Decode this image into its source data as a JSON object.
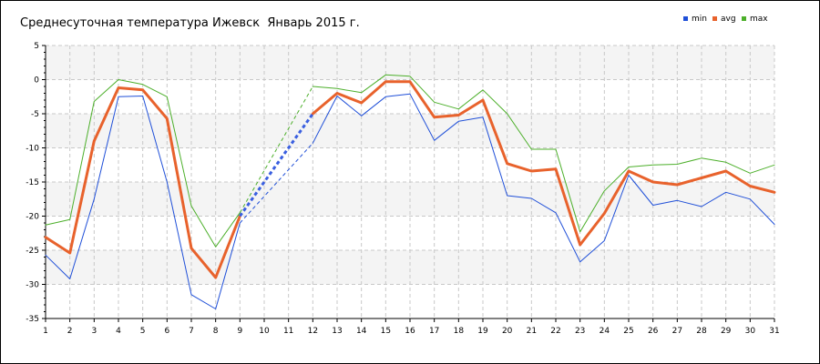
{
  "chart_data": {
    "type": "line",
    "title": "Среднесуточная температура Ижевск  Январь 2015 г.",
    "xlabel": "",
    "ylabel": "",
    "x": [
      1,
      2,
      3,
      4,
      5,
      6,
      7,
      8,
      9,
      10,
      11,
      12,
      13,
      14,
      15,
      16,
      17,
      18,
      19,
      20,
      21,
      22,
      23,
      24,
      25,
      26,
      27,
      28,
      29,
      30,
      31
    ],
    "xlim": [
      1,
      31
    ],
    "ylim": [
      -35,
      5
    ],
    "y_ticks": [
      5,
      0,
      -5,
      -10,
      -15,
      -20,
      -25,
      -30,
      -35
    ],
    "grid": true,
    "legend_position": "top-right",
    "gap_days": [
      10,
      11
    ],
    "series": [
      {
        "name": "min",
        "color": "#1f4fd8",
        "values": [
          -25.7,
          -29.2,
          -17.5,
          -2.5,
          -2.4,
          -15.0,
          -31.5,
          -33.6,
          -21.0,
          null,
          null,
          -9.3,
          -2.4,
          -5.3,
          -2.5,
          -2.1,
          -8.9,
          -6.1,
          -5.5,
          -17.0,
          -17.4,
          -19.5,
          -26.7,
          -23.6,
          -14.0,
          -18.4,
          -17.7,
          -18.6,
          -16.5,
          -17.5,
          -21.2
        ]
      },
      {
        "name": "avg",
        "color": "#e8622c",
        "values": [
          -23.1,
          -25.4,
          -9.0,
          -1.2,
          -1.5,
          -5.7,
          -24.7,
          -29.0,
          -20.0,
          null,
          null,
          -5.0,
          -2.0,
          -3.4,
          -0.3,
          -0.3,
          -5.5,
          -5.2,
          -3.0,
          -12.3,
          -13.4,
          -13.1,
          -24.2,
          -19.6,
          -13.4,
          -15.0,
          -15.4,
          -14.4,
          -13.4,
          -15.6,
          -16.5
        ]
      },
      {
        "name": "max",
        "color": "#4caf2a",
        "values": [
          -21.3,
          -20.5,
          -3.2,
          0.0,
          -0.7,
          -2.5,
          -18.5,
          -24.5,
          -19.5,
          null,
          null,
          -1.0,
          -1.3,
          -1.9,
          0.7,
          0.5,
          -3.3,
          -4.3,
          -1.5,
          -5.0,
          -10.2,
          -10.2,
          -22.3,
          -16.3,
          -12.8,
          -12.5,
          -12.4,
          -11.5,
          -12.1,
          -13.7,
          -12.5
        ]
      }
    ]
  }
}
